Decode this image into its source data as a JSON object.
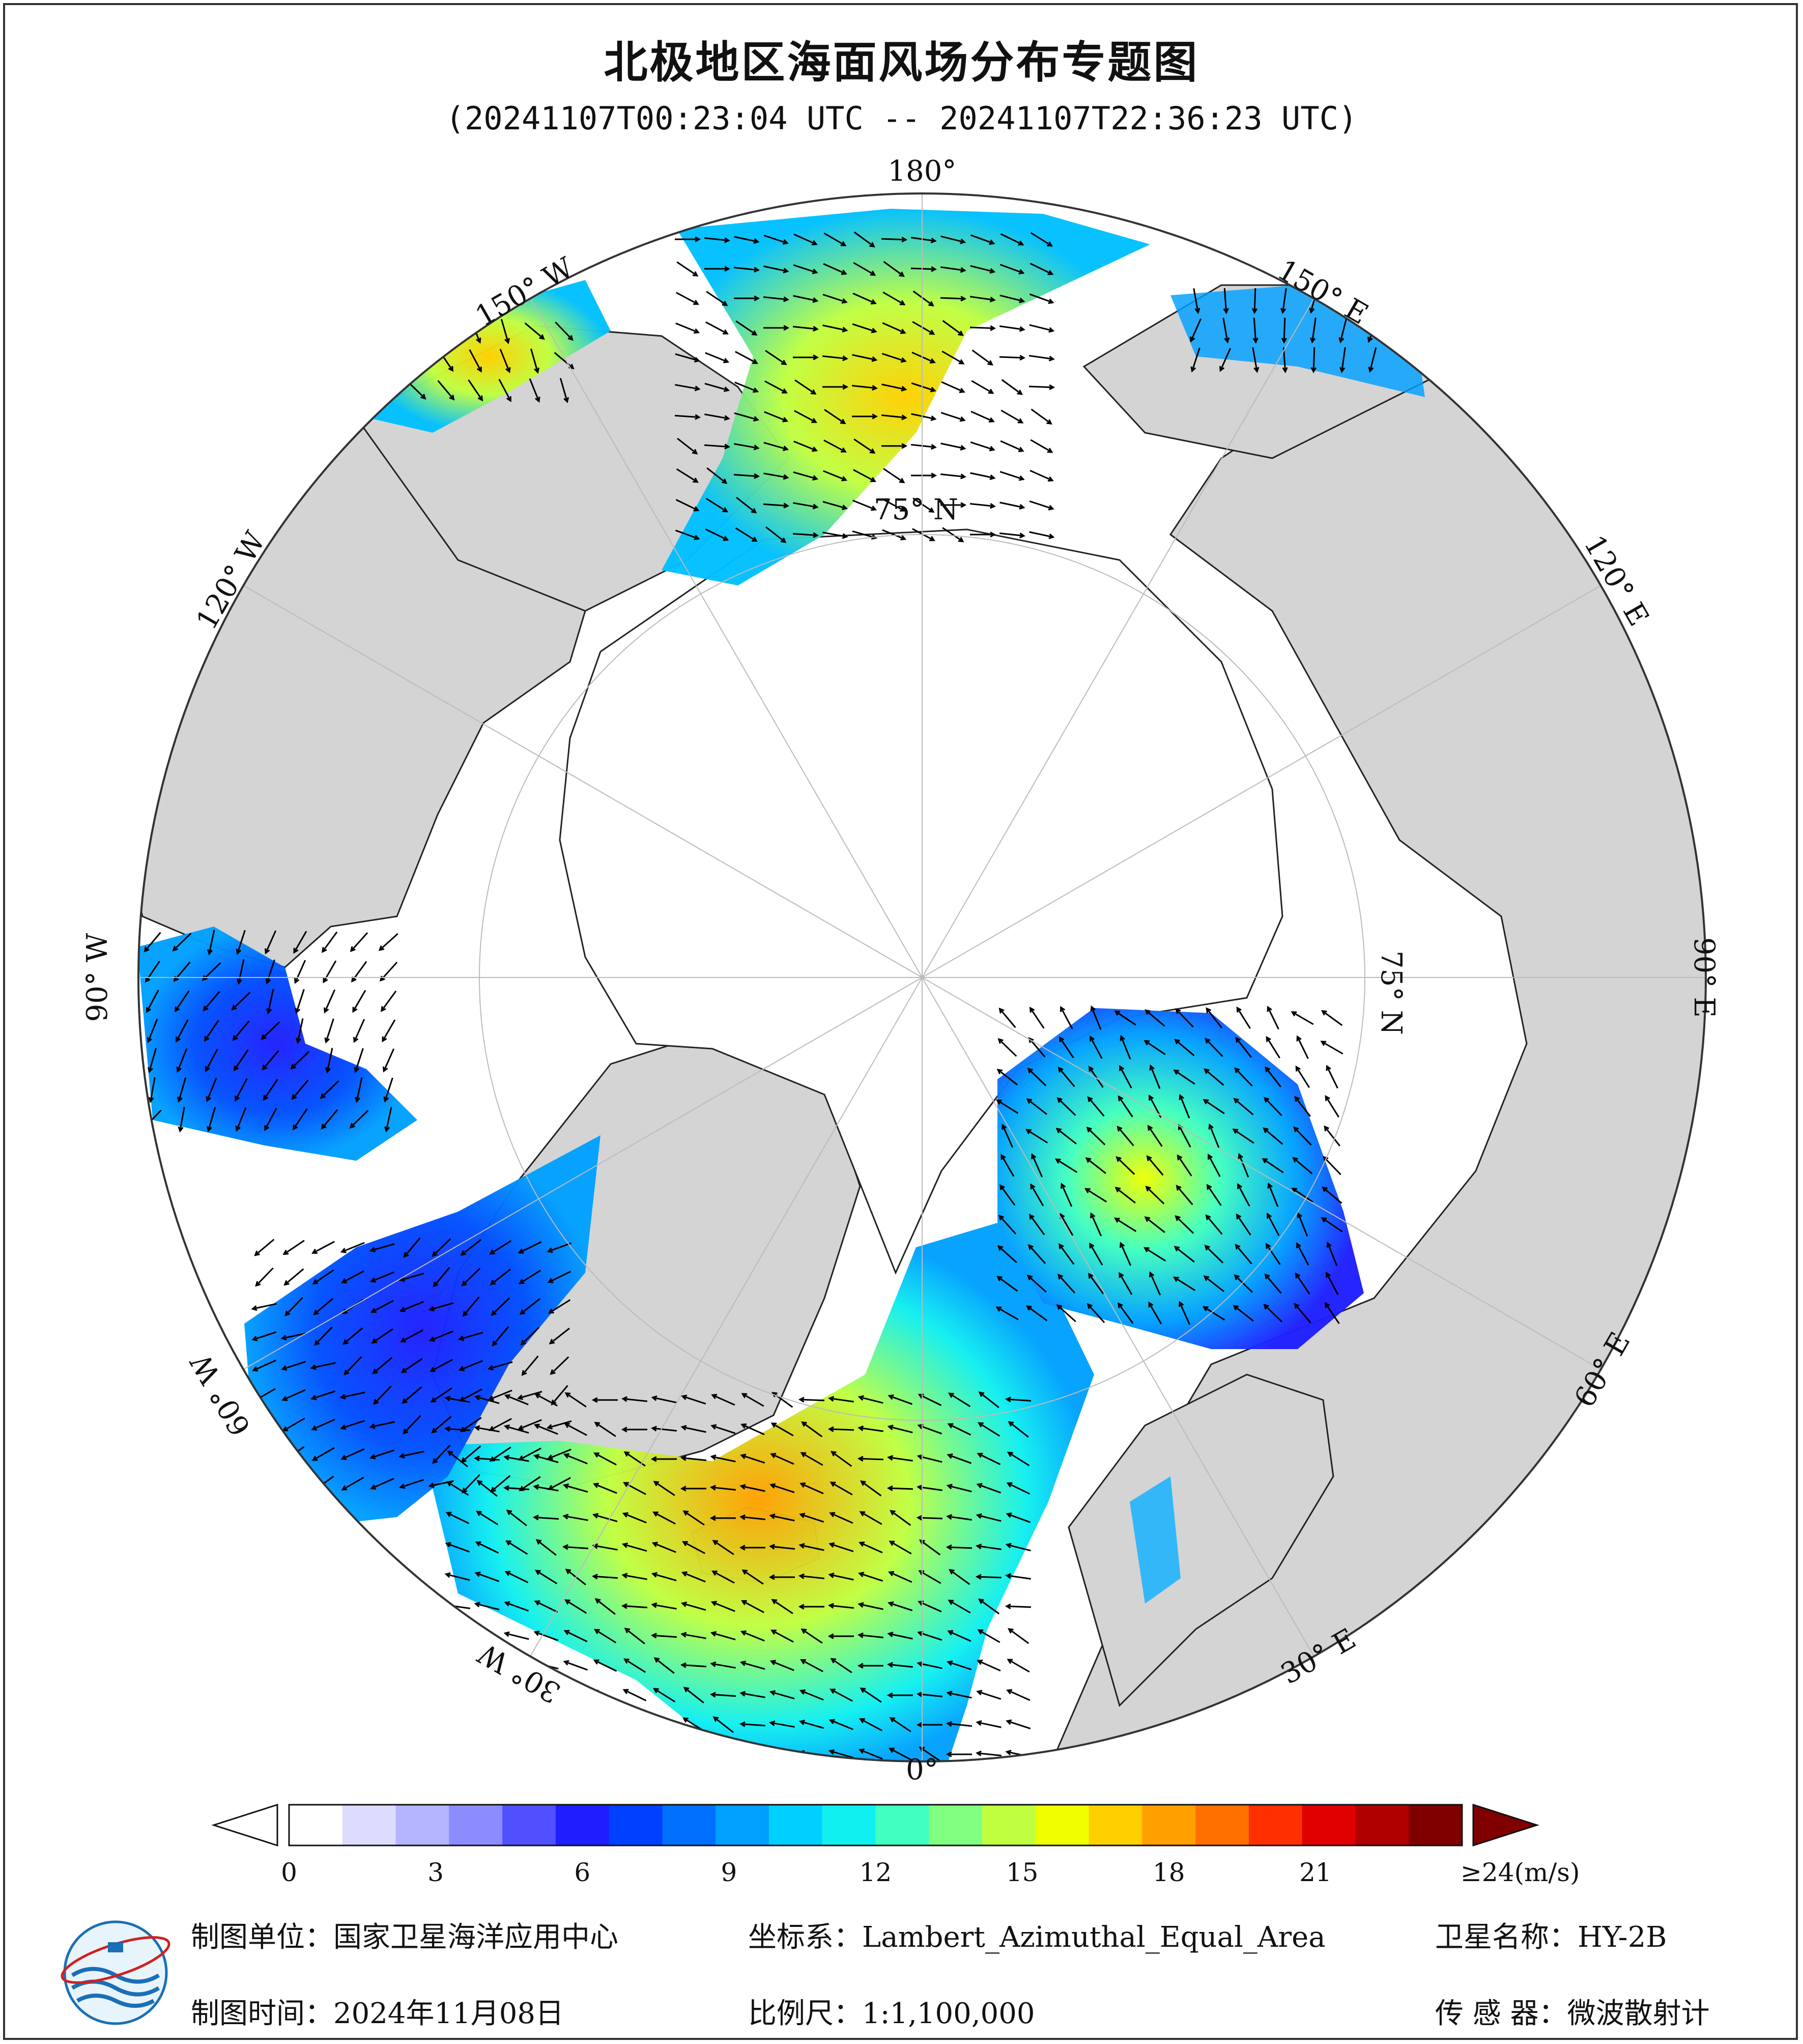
{
  "title": "北极地区海面风场分布专题图",
  "subtitle": "(20241107T00:23:04 UTC -- 20241107T22:36:23 UTC)",
  "map": {
    "projection": "Lambert Azimuthal Equal Area, North Polar",
    "longitude_labels": {
      "lon_180": "180°",
      "lon_150w": "150° W",
      "lon_120w": "120° W",
      "lon_90w": "90° W",
      "lon_60w": "60° W",
      "lon_30w": "30° W",
      "lon_0": "0°",
      "lon_30e": "30° E",
      "lon_60e": "60° E",
      "lon_90e": "90° E",
      "lon_120e": "120° E",
      "lon_150e": "150° E"
    },
    "latitude_label": "75° N",
    "colors": {
      "land": "#d4d4d4",
      "sea_ice": "#ffffff",
      "ocean_out": "#ffffff",
      "arrow": "#000000",
      "graticule": "#bbbbbb"
    }
  },
  "colorbar": {
    "unit_label": "≥24(m/s)",
    "ticks": [
      "0",
      "3",
      "6",
      "9",
      "12",
      "15",
      "18",
      "21"
    ],
    "tick_values": [
      0,
      3,
      6,
      9,
      12,
      15,
      18,
      21
    ],
    "min": 0,
    "max": 24,
    "colors": [
      "#ffffff",
      "#dcdcff",
      "#b4b4ff",
      "#8c8cff",
      "#5050ff",
      "#1e1eff",
      "#0040ff",
      "#0070ff",
      "#00a0ff",
      "#00d0ff",
      "#10f0f0",
      "#40ffc0",
      "#80ff80",
      "#c0ff40",
      "#f0ff00",
      "#ffd000",
      "#ffa000",
      "#ff7000",
      "#ff3000",
      "#e00000",
      "#b00000",
      "#800000"
    ]
  },
  "footer": {
    "unit_key": "制图单位：",
    "unit_value": "国家卫星海洋应用中心",
    "crs_key": "坐标系：",
    "crs_value": "Lambert_Azimuthal_Equal_Area",
    "sat_key": "卫星名称：",
    "sat_value": "HY-2B",
    "time_key": "制图时间：",
    "time_value": "2024年11月08日",
    "scale_key": "比例尺：",
    "scale_value": "1:1,100,000",
    "sensor_key": "传 感 器：",
    "sensor_value": "微波散射计"
  }
}
